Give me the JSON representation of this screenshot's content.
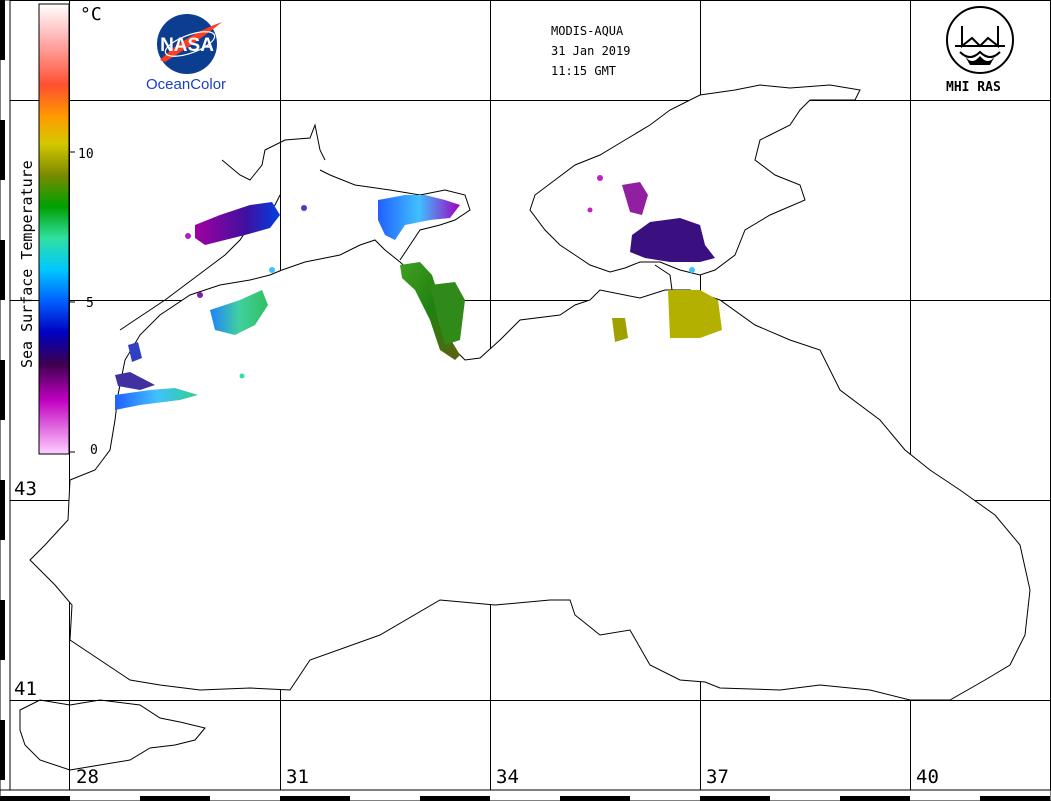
{
  "header": {
    "sensor": "MODIS-AQUA",
    "date": "31 Jan 2019",
    "time": "11:15 GMT"
  },
  "logos": {
    "nasa_text": "NASA",
    "oceancolor_text": "OceanColor",
    "mhi_text": "MHI RAS"
  },
  "legend": {
    "title": "Sea Surface Temperature",
    "unit": "°C",
    "ticks": [
      "10",
      "5",
      "0"
    ],
    "range": [
      0,
      15
    ],
    "colors": [
      "#ffffff",
      "#ff6a3a",
      "#ffd000",
      "#a0b000",
      "#008000",
      "#20e0b0",
      "#00a0ff",
      "#0000d0",
      "#400060",
      "#ff40ff",
      "#ffc0ff"
    ]
  },
  "axes": {
    "latitudes": [
      "43",
      "41"
    ],
    "longitudes": [
      "28",
      "31",
      "34",
      "37",
      "40"
    ]
  },
  "colors": {
    "accent": "#1a3fc4",
    "nasa_blue": "#0b3d91",
    "nasa_red": "#fc3d21"
  }
}
